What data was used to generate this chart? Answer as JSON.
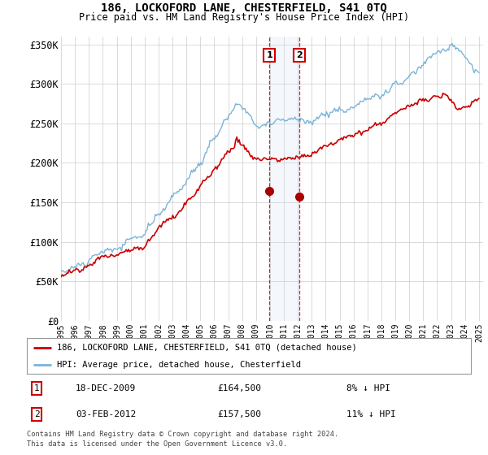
{
  "title": "186, LOCKOFORD LANE, CHESTERFIELD, S41 0TQ",
  "subtitle": "Price paid vs. HM Land Registry's House Price Index (HPI)",
  "ylim": [
    0,
    360000
  ],
  "yticks": [
    0,
    50000,
    100000,
    150000,
    200000,
    250000,
    300000,
    350000
  ],
  "ytick_labels": [
    "£0",
    "£50K",
    "£100K",
    "£150K",
    "£200K",
    "£250K",
    "£300K",
    "£350K"
  ],
  "hpi_color": "#7ab4d8",
  "price_color": "#cc0000",
  "marker_color": "#aa0000",
  "shaded_color": "#ddeeff",
  "annotation1_date": "18-DEC-2009",
  "annotation1_price": "£164,500",
  "annotation1_hpi": "8% ↓ HPI",
  "annotation1_year": 2009.96,
  "annotation1_value": 164500,
  "annotation2_date": "03-FEB-2012",
  "annotation2_price": "£157,500",
  "annotation2_hpi": "11% ↓ HPI",
  "annotation2_year": 2012.09,
  "annotation2_value": 157500,
  "legend_label1": "186, LOCKOFORD LANE, CHESTERFIELD, S41 0TQ (detached house)",
  "legend_label2": "HPI: Average price, detached house, Chesterfield",
  "footer1": "Contains HM Land Registry data © Crown copyright and database right 2024.",
  "footer2": "This data is licensed under the Open Government Licence v3.0.",
  "background_color": "#ffffff",
  "grid_color": "#cccccc"
}
